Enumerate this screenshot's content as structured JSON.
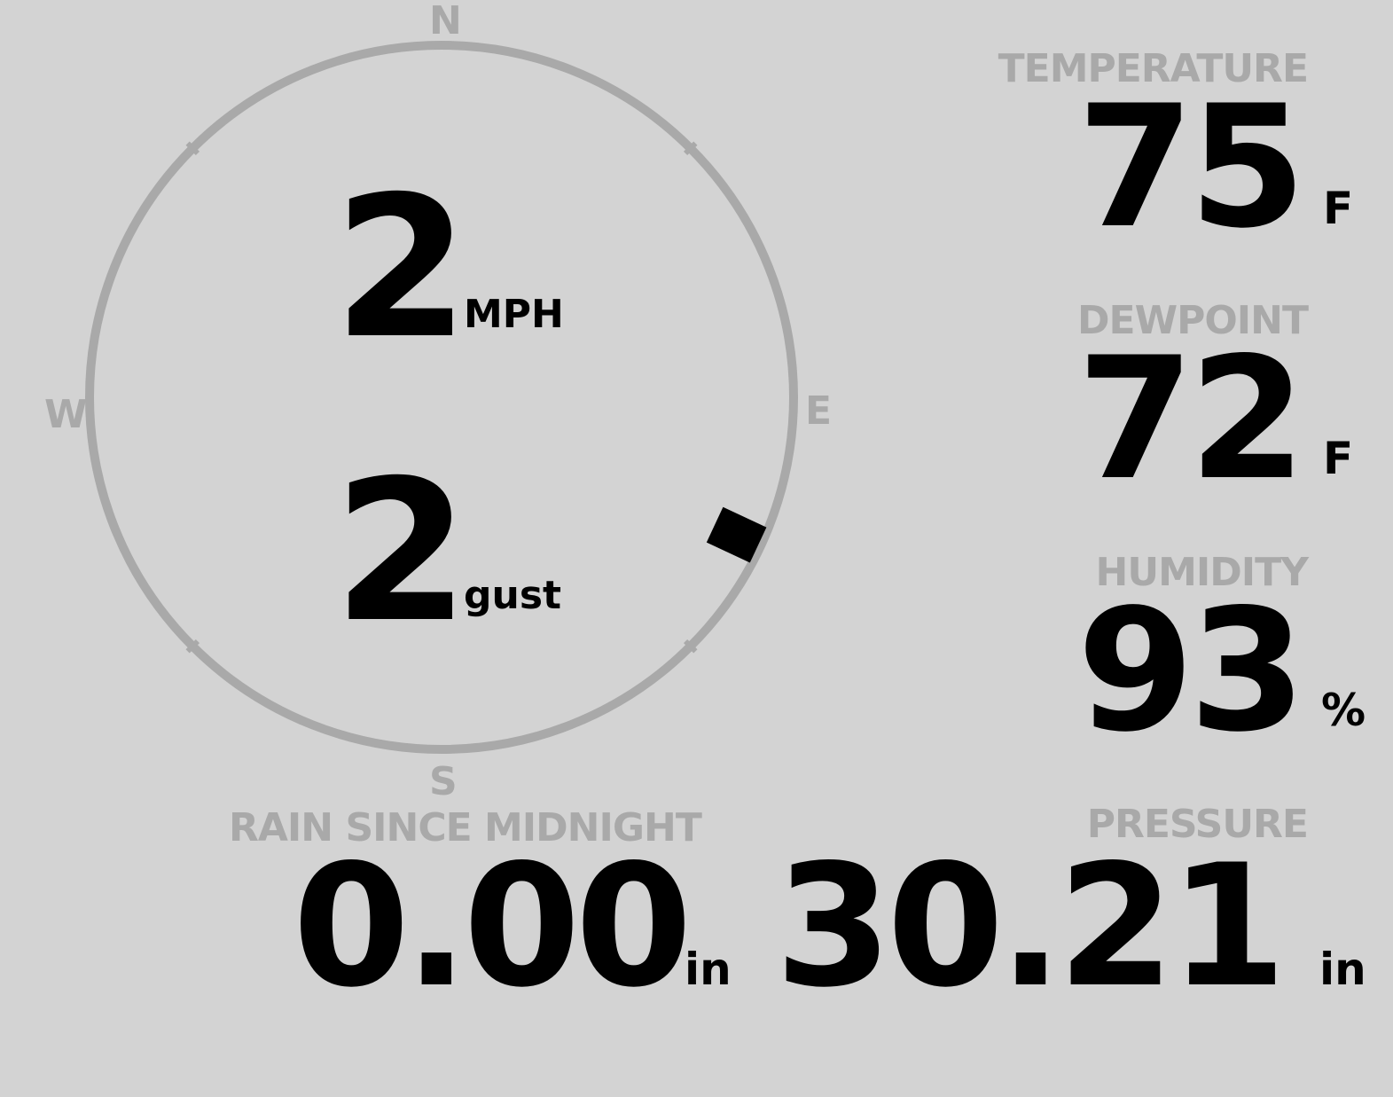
{
  "wind": {
    "speed": "2",
    "speed_unit": "MPH",
    "gust": "2",
    "gust_unit": "gust",
    "direction_deg": 115,
    "cardinals": {
      "n": "N",
      "e": "E",
      "s": "S",
      "w": "W"
    }
  },
  "temperature": {
    "label": "TEMPERATURE",
    "value": "75",
    "unit": "F"
  },
  "dewpoint": {
    "label": "DEWPOINT",
    "value": "72",
    "unit": "F"
  },
  "humidity": {
    "label": "HUMIDITY",
    "value": "93",
    "unit": "%"
  },
  "rain": {
    "label": "RAIN SINCE MIDNIGHT",
    "value": "0.00",
    "unit": "in"
  },
  "pressure": {
    "label": "PRESSURE",
    "value": "30.21",
    "unit": "in"
  },
  "colors": {
    "background": "#d3d3d3",
    "label": "#a9a9a9",
    "value": "#000000"
  }
}
